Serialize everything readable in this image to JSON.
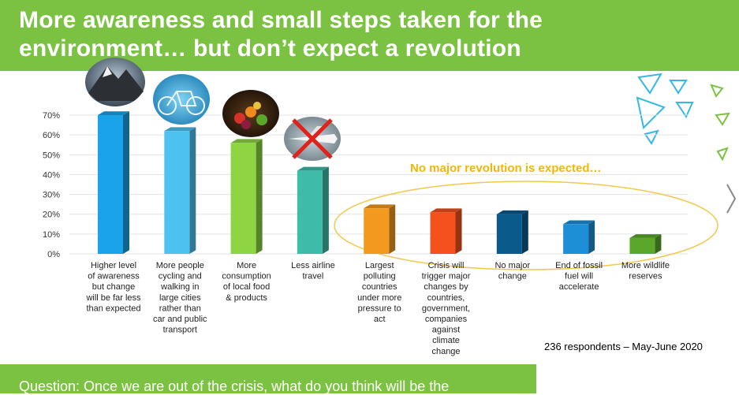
{
  "header": {
    "title_line1": "More awareness and small steps taken for the",
    "title_line2": "environment… but don’t expect a revolution"
  },
  "annotation": "No major revolution is expected…",
  "respondents": "236 respondents – May-June 2020",
  "footer": {
    "question": "Question: Once we are out of the crisis, what do you think will be the"
  },
  "colors": {
    "header_green": "#7cc242",
    "ellipse": "#f2c84b",
    "annotation": "#f2b705"
  },
  "icons": [
    "mountain-photo-icon",
    "bicycle-photo-icon",
    "food-photo-icon",
    "crossed-airplane-icon"
  ],
  "chart_data": {
    "type": "bar",
    "title": "",
    "xlabel": "",
    "ylabel": "",
    "ylim": [
      0,
      70
    ],
    "yticks": [
      "0%",
      "10%",
      "20%",
      "30%",
      "40%",
      "50%",
      "60%",
      "70%"
    ],
    "grid": true,
    "legend": "none",
    "categories": [
      [
        "Higher level",
        "of awareness",
        "but change",
        "will be far less",
        "than expected"
      ],
      [
        "More people",
        "cycling and",
        "walking in",
        "large cities",
        "rather than",
        "car and public",
        "transport"
      ],
      [
        "More",
        "consumption",
        "of local food",
        "& products"
      ],
      [
        "Less airline",
        "travel"
      ],
      [
        "Largest",
        "polluting",
        "countries",
        "under more",
        "pressure to",
        "act"
      ],
      [
        "Crisis will",
        "trigger major",
        "changes by",
        "countries,",
        "government,",
        "companies",
        "against",
        "climate",
        "change"
      ],
      [
        "No major",
        "change"
      ],
      [
        "End of fossil",
        "fuel will",
        "accelerate"
      ],
      [
        "More wildlife",
        "reserves"
      ]
    ],
    "values": [
      70,
      62,
      56,
      42,
      23,
      21,
      20,
      15,
      8
    ],
    "colors": [
      "#1aa3e8",
      "#4dc2f0",
      "#8ed443",
      "#3fbca9",
      "#f39a1e",
      "#f4511e",
      "#0a5a8c",
      "#1e8fd6",
      "#5aa72c"
    ]
  }
}
